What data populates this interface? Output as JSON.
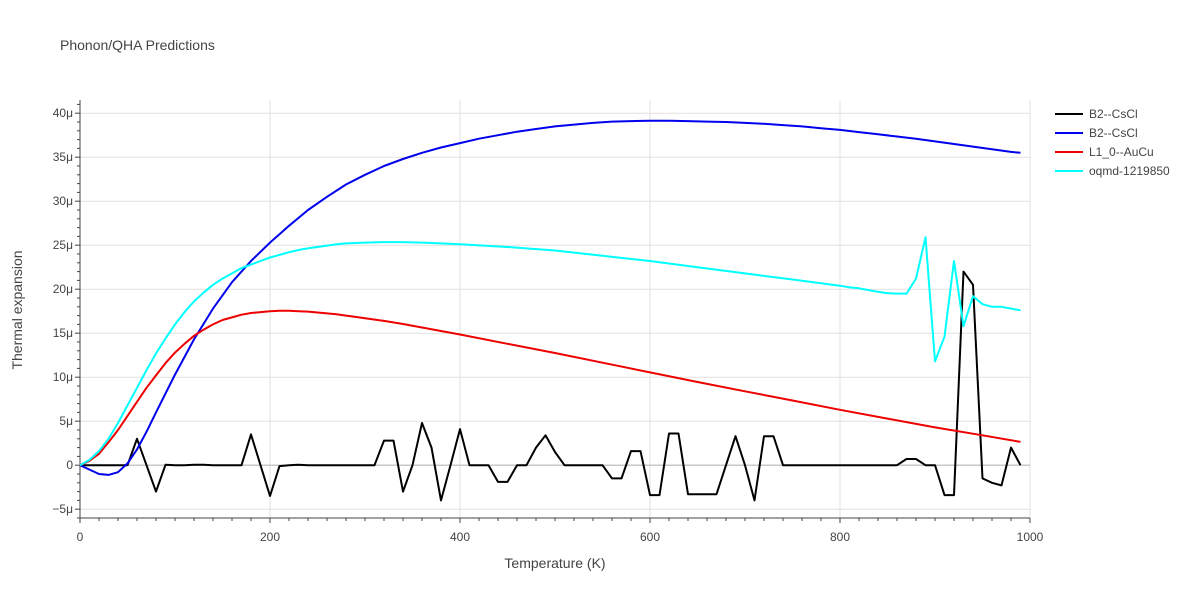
{
  "chart_data": {
    "type": "line",
    "title": "Phonon/QHA Predictions",
    "xlabel": "Temperature (K)",
    "ylabel": "Thermal expansion",
    "xlim": [
      0,
      1000
    ],
    "ylim": [
      -6,
      41.5
    ],
    "x_ticks": [
      0,
      200,
      400,
      600,
      800,
      1000
    ],
    "x_tick_labels": [
      "0",
      "200",
      "400",
      "600",
      "800",
      "1000"
    ],
    "y_ticks": [
      -5,
      0,
      5,
      10,
      15,
      20,
      25,
      30,
      35,
      40
    ],
    "y_tick_labels": [
      "−5μ",
      "0",
      "5μ",
      "10μ",
      "15μ",
      "20μ",
      "25μ",
      "30μ",
      "35μ",
      "40μ"
    ],
    "grid": true,
    "legend_position": "top-right",
    "series": [
      {
        "name": "B2--CsCl",
        "color": "#000000",
        "x": [
          0,
          10,
          20,
          30,
          40,
          50,
          60,
          70,
          80,
          90,
          100,
          110,
          120,
          130,
          140,
          150,
          160,
          170,
          180,
          190,
          200,
          210,
          220,
          230,
          240,
          250,
          260,
          270,
          280,
          290,
          300,
          310,
          320,
          330,
          340,
          350,
          360,
          370,
          380,
          390,
          400,
          410,
          420,
          430,
          440,
          450,
          460,
          470,
          480,
          490,
          500,
          510,
          520,
          530,
          540,
          550,
          560,
          570,
          580,
          590,
          600,
          610,
          620,
          630,
          640,
          650,
          660,
          670,
          680,
          690,
          700,
          710,
          720,
          730,
          740,
          750,
          760,
          770,
          780,
          790,
          800,
          810,
          820,
          830,
          840,
          850,
          860,
          870,
          880,
          890,
          900,
          910,
          920,
          930,
          940,
          950,
          960,
          970,
          980,
          990
        ],
        "y": [
          0,
          0,
          0,
          0,
          0,
          0,
          3.0,
          0,
          -3.0,
          0.05,
          0,
          0,
          0.05,
          0.05,
          0,
          0,
          0,
          0,
          3.5,
          0,
          -3.5,
          -0.1,
          0,
          0.05,
          0,
          0,
          0,
          0,
          0,
          0,
          0,
          0,
          2.8,
          2.8,
          -3.0,
          0,
          4.8,
          2.0,
          -4.0,
          0,
          4.1,
          0,
          0,
          0,
          -1.9,
          -1.9,
          0,
          0,
          2.0,
          3.4,
          1.5,
          0,
          0,
          0,
          0,
          0,
          -1.5,
          -1.5,
          1.6,
          1.6,
          -3.4,
          -3.4,
          3.6,
          3.6,
          -3.3,
          -3.3,
          -3.3,
          -3.3,
          0,
          3.3,
          0,
          -4.0,
          3.3,
          3.3,
          0,
          0,
          0,
          0,
          0,
          0,
          0,
          0,
          0,
          0,
          0,
          0,
          0,
          0.7,
          0.7,
          0,
          0,
          -3.4,
          -3.4,
          22.0,
          20.5,
          -1.5,
          -2.0,
          -2.3,
          2.0,
          0
        ]
      },
      {
        "name": "B2--CsCl",
        "color": "#0000ee",
        "x": [
          0,
          10,
          20,
          30,
          40,
          50,
          60,
          70,
          80,
          100,
          120,
          140,
          160,
          180,
          200,
          220,
          240,
          260,
          280,
          300,
          320,
          340,
          360,
          380,
          400,
          420,
          440,
          460,
          480,
          500,
          520,
          540,
          560,
          580,
          600,
          620,
          640,
          660,
          680,
          700,
          720,
          740,
          760,
          780,
          800,
          820,
          840,
          860,
          880,
          900,
          920,
          940,
          960,
          980,
          990
        ],
        "y": [
          0,
          -0.5,
          -1.0,
          -1.1,
          -0.8,
          0.2,
          1.8,
          3.8,
          6.0,
          10.3,
          14.3,
          17.8,
          20.8,
          23.2,
          25.3,
          27.2,
          29.0,
          30.5,
          31.9,
          33.0,
          34.0,
          34.8,
          35.5,
          36.1,
          36.6,
          37.1,
          37.5,
          37.9,
          38.2,
          38.5,
          38.7,
          38.9,
          39.05,
          39.1,
          39.15,
          39.15,
          39.1,
          39.05,
          39.0,
          38.9,
          38.8,
          38.65,
          38.5,
          38.3,
          38.1,
          37.85,
          37.6,
          37.35,
          37.1,
          36.8,
          36.5,
          36.2,
          35.9,
          35.6,
          35.5
        ]
      },
      {
        "name": "L1_0--AuCu",
        "color": "#ee0000",
        "x": [
          0,
          10,
          20,
          30,
          40,
          50,
          60,
          70,
          80,
          90,
          100,
          110,
          120,
          130,
          140,
          150,
          160,
          170,
          180,
          190,
          200,
          210,
          220,
          230,
          240,
          250,
          260,
          270,
          280,
          290,
          300,
          320,
          340,
          360,
          380,
          400,
          450,
          500,
          550,
          600,
          650,
          700,
          750,
          800,
          850,
          900,
          950,
          990
        ],
        "y": [
          0,
          0.5,
          1.3,
          2.6,
          4.0,
          5.6,
          7.2,
          8.8,
          10.2,
          11.6,
          12.8,
          13.8,
          14.7,
          15.4,
          16.0,
          16.5,
          16.8,
          17.1,
          17.3,
          17.4,
          17.5,
          17.55,
          17.55,
          17.5,
          17.45,
          17.35,
          17.25,
          17.15,
          17.0,
          16.85,
          16.7,
          16.4,
          16.05,
          15.65,
          15.25,
          14.85,
          13.8,
          12.75,
          11.65,
          10.55,
          9.45,
          8.4,
          7.35,
          6.3,
          5.3,
          4.3,
          3.4,
          2.65
        ]
      },
      {
        "name": "oqmd-1219850",
        "color": "#00ffff",
        "x": [
          0,
          10,
          20,
          30,
          40,
          50,
          60,
          70,
          80,
          90,
          100,
          110,
          120,
          130,
          140,
          150,
          160,
          170,
          180,
          190,
          200,
          210,
          220,
          230,
          240,
          250,
          260,
          270,
          280,
          290,
          300,
          320,
          340,
          360,
          380,
          400,
          450,
          500,
          550,
          600,
          650,
          700,
          750,
          800,
          810,
          820,
          830,
          840,
          850,
          860,
          870,
          880,
          890,
          900,
          910,
          920,
          930,
          940,
          950,
          960,
          970,
          980,
          990
        ],
        "y": [
          0,
          0.6,
          1.6,
          3.0,
          4.8,
          6.8,
          8.8,
          10.8,
          12.7,
          14.4,
          16.0,
          17.4,
          18.6,
          19.6,
          20.5,
          21.2,
          21.8,
          22.4,
          22.8,
          23.2,
          23.6,
          23.9,
          24.2,
          24.45,
          24.65,
          24.8,
          24.95,
          25.1,
          25.2,
          25.25,
          25.3,
          25.35,
          25.35,
          25.3,
          25.2,
          25.1,
          24.8,
          24.4,
          23.8,
          23.2,
          22.5,
          21.8,
          21.1,
          20.4,
          20.2,
          20.1,
          19.9,
          19.7,
          19.55,
          19.5,
          19.5,
          21.2,
          25.9,
          11.8,
          14.6,
          23.2,
          15.8,
          19.2,
          18.3,
          18.0,
          18.0,
          17.8,
          17.6
        ]
      }
    ]
  }
}
